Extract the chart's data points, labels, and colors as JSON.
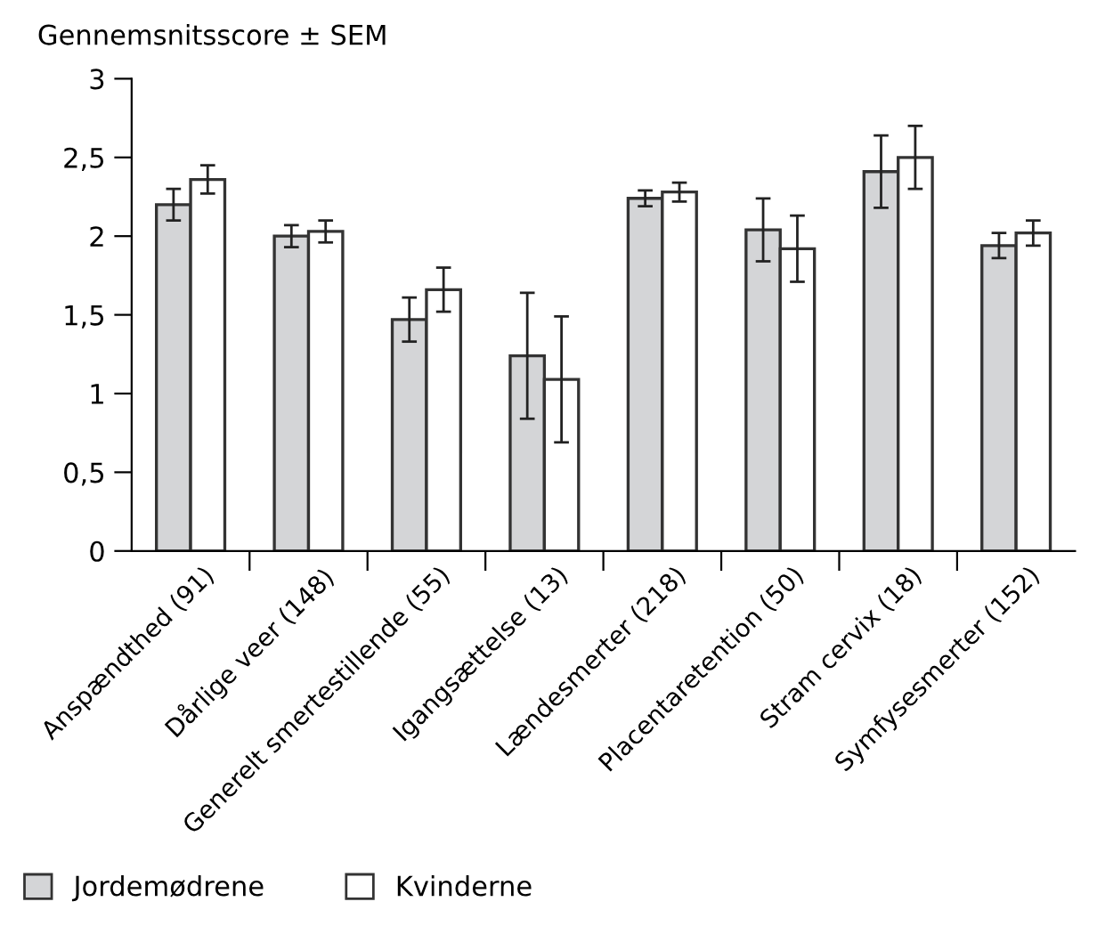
{
  "chart_data": {
    "type": "bar",
    "ylabel": "Gennemsnitsscore ± SEM",
    "categories": [
      "Anspændthed (91)",
      "Dårlige veer (148)",
      "Generelt smertestillende (55)",
      "Igangsættelse (13)",
      "Lændesmerter (218)",
      "Placentaretention (50)",
      "Stram cervix (18)",
      "Symfysesmerter (152)"
    ],
    "series": [
      {
        "name": "Jordemødrene",
        "color": "#d4d5d7",
        "values": [
          2.2,
          2.0,
          1.47,
          1.24,
          2.24,
          2.04,
          2.41,
          1.94
        ],
        "errors": [
          0.1,
          0.07,
          0.14,
          0.4,
          0.05,
          0.2,
          0.23,
          0.08
        ]
      },
      {
        "name": "Kvinderne",
        "color": "#ffffff",
        "values": [
          2.36,
          2.03,
          1.66,
          1.09,
          2.28,
          1.92,
          2.5,
          2.02
        ],
        "errors": [
          0.09,
          0.07,
          0.14,
          0.4,
          0.06,
          0.21,
          0.2,
          0.08
        ]
      }
    ],
    "ylim": [
      0,
      3
    ],
    "yticks": [
      {
        "value": 0,
        "label": "0"
      },
      {
        "value": 0.5,
        "label": "0,5"
      },
      {
        "value": 1,
        "label": "1"
      },
      {
        "value": 1.5,
        "label": "1,5"
      },
      {
        "value": 2,
        "label": "2"
      },
      {
        "value": 2.5,
        "label": "2,5"
      },
      {
        "value": 3,
        "label": "3"
      }
    ],
    "grid": false,
    "legend": "bottom"
  }
}
